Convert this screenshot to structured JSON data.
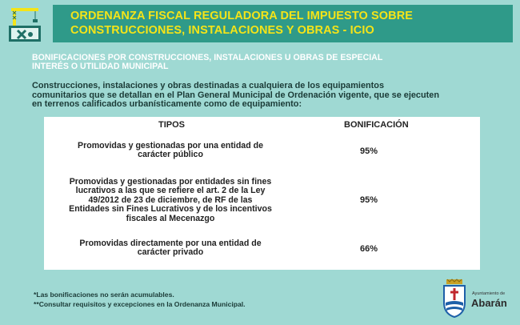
{
  "header": {
    "icon": "crane-tools-icon",
    "title_line1": "ORDENANZA FISCAL REGULADORA DEL IMPUESTO SOBRE",
    "title_line2": "CONSTRUCCIONES, INSTALACIONES Y OBRAS - ICIO"
  },
  "section": {
    "title_line1": "BONIFICACIONES POR CONSTRUCCIONES, INSTALACIONES U OBRAS DE ESPECIAL",
    "title_line2": "INTERÉS O UTILIDAD MUNICIPAL"
  },
  "intro": {
    "line1": "Construcciones, instalaciones y obras destinadas a cualquiera de los equipamientos",
    "line2": "comunitarios que se detallan en el Plan General Municipal de Ordenación vigente, que se ejecuten",
    "line3": "en terrenos calificados urbanísticamente como de equipamiento:"
  },
  "table": {
    "headers": {
      "tipos": "TIPOS",
      "bonificacion": "BONIFICACIÓN"
    },
    "rows": [
      {
        "tipo_lines": [
          "Promovidas y gestionadas por una entidad de",
          "carácter público"
        ],
        "bonificacion": "95%"
      },
      {
        "tipo_lines": [
          "Promovidas y gestionadas por entidades sin fines",
          "lucrativos a las que se refiere el art. 2 de la Ley",
          "49/2012 de 23 de diciembre, de RF de las",
          "Entidades sin Fines Lucrativos y de los incentivos",
          "fiscales al Mecenazgo"
        ],
        "bonificacion": "95%"
      },
      {
        "tipo_lines": [
          "Promovidas directamente por una entidad de",
          "carácter privado"
        ],
        "bonificacion": "66%"
      }
    ]
  },
  "footnotes": [
    "*Las bonificaciones no serán acumulables.",
    "**Consultar requisitos y excepciones en la Ordenanza Municipal."
  ],
  "logo": {
    "small_text": "Ayuntamiento de",
    "name": "Abarán",
    "icon": "coat-of-arms-icon"
  },
  "colors": {
    "background": "#9fd9d3",
    "banner": "#2f9a89",
    "banner_text": "#f5e418",
    "section_title": "#ffffff"
  }
}
